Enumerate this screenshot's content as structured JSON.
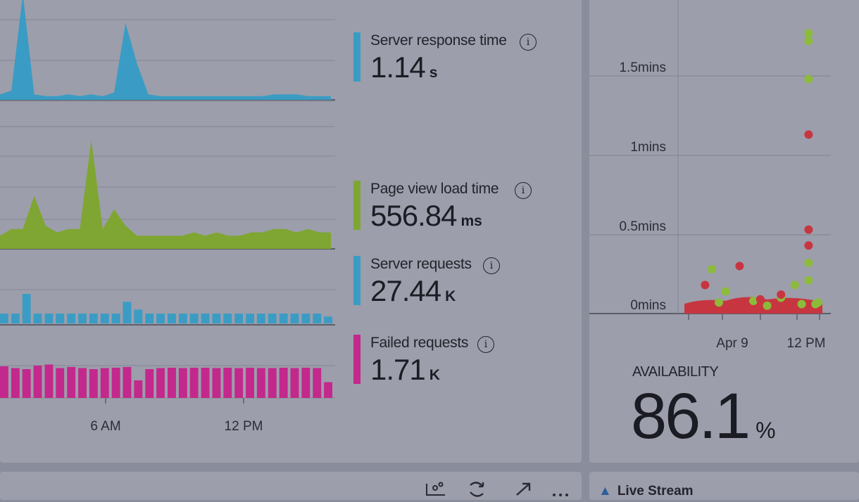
{
  "metrics": [
    {
      "label": "Server response time",
      "value": "1.14",
      "unit": "s",
      "color": "#3a9cc4"
    },
    {
      "label": "Page view load time",
      "value": "556.84",
      "unit": "ms",
      "color": "#7fa632"
    },
    {
      "label": "Server requests",
      "value": "27.44",
      "unit": "K",
      "color": "#3a9cc4"
    },
    {
      "label": "Failed requests",
      "value": "1.71",
      "unit": "K",
      "color": "#c3288c"
    }
  ],
  "info_icon": "i",
  "time_axis": {
    "labels": [
      "6 AM",
      "12 PM"
    ]
  },
  "scatter_axis": {
    "y_labels": [
      "1.5mins",
      "1mins",
      "0.5mins",
      "0mins"
    ],
    "x_labels": [
      "Apr 9",
      "12 PM"
    ]
  },
  "availability": {
    "label": "AVAILABILITY",
    "value": "86.1",
    "unit": "%"
  },
  "bottom": {
    "live_stream_label": "Live Stream",
    "icons": [
      "scatter-icon",
      "refresh-icon",
      "expand-icon",
      "more-icon"
    ]
  },
  "chart_data": [
    {
      "type": "area",
      "title": "Server response time",
      "color": "#3a9cc4",
      "x": [
        0,
        1,
        2,
        3,
        4,
        5,
        6,
        7,
        8,
        9,
        10,
        11,
        12,
        13,
        14,
        15,
        16,
        17,
        18,
        19,
        20,
        21,
        22,
        23,
        24,
        25,
        26,
        27,
        28,
        29
      ],
      "values": [
        0.3,
        0.5,
        5.8,
        0.3,
        0.2,
        0.2,
        0.3,
        0.2,
        0.3,
        0.2,
        0.4,
        4.2,
        2.0,
        0.3,
        0.2,
        0.2,
        0.2,
        0.2,
        0.2,
        0.2,
        0.2,
        0.2,
        0.2,
        0.2,
        0.3,
        0.3,
        0.3,
        0.2,
        0.2,
        0.2
      ]
    },
    {
      "type": "area",
      "title": "Page view load time",
      "color": "#7fa632",
      "x": [
        0,
        1,
        2,
        3,
        4,
        5,
        6,
        7,
        8,
        9,
        10,
        11,
        12,
        13,
        14,
        15,
        16,
        17,
        18,
        19,
        20,
        21,
        22,
        23,
        24,
        25,
        26,
        27,
        28,
        29
      ],
      "values": [
        0.4,
        0.6,
        0.6,
        1.6,
        0.7,
        0.5,
        0.6,
        0.6,
        3.3,
        0.6,
        1.2,
        0.7,
        0.4,
        0.4,
        0.4,
        0.4,
        0.4,
        0.5,
        0.4,
        0.5,
        0.4,
        0.4,
        0.5,
        0.5,
        0.6,
        0.6,
        0.5,
        0.6,
        0.5,
        0.5
      ]
    },
    {
      "type": "bar",
      "title": "Server requests",
      "color": "#3a9cc4",
      "values": [
        1,
        1,
        3,
        1,
        1,
        1,
        1,
        1,
        1,
        1,
        1,
        2.2,
        1.4,
        1,
        1,
        1,
        1,
        1,
        1,
        1,
        1,
        1,
        1,
        1,
        1,
        1,
        1,
        1,
        1,
        0.7
      ]
    },
    {
      "type": "bar",
      "title": "Failed requests",
      "color": "#c3288c",
      "values": [
        0.9,
        0.85,
        0.82,
        0.92,
        0.95,
        0.85,
        0.88,
        0.85,
        0.82,
        0.85,
        0.86,
        0.88,
        0.5,
        0.82,
        0.85,
        0.86,
        0.85,
        0.86,
        0.86,
        0.85,
        0.86,
        0.85,
        0.86,
        0.85,
        0.85,
        0.86,
        0.85,
        0.86,
        0.85,
        0.45
      ]
    },
    {
      "type": "scatter",
      "title": "",
      "ylabel": "",
      "ylim": [
        0,
        1.75
      ],
      "series": [
        {
          "color": "#8cba3a",
          "points": [
            [
              0.2,
              0.28
            ],
            [
              0.25,
              0.07
            ],
            [
              0.3,
              0.14
            ],
            [
              0.5,
              0.08
            ],
            [
              0.6,
              0.05
            ],
            [
              0.7,
              0.1
            ],
            [
              0.8,
              0.18
            ],
            [
              0.85,
              0.06
            ],
            [
              0.9,
              0.21
            ],
            [
              0.9,
              0.32
            ],
            [
              0.9,
              1.48
            ],
            [
              0.9,
              1.72
            ],
            [
              0.9,
              1.77
            ],
            [
              0.95,
              0.06
            ],
            [
              0.97,
              0.07
            ]
          ]
        },
        {
          "color": "#c73640",
          "points": [
            [
              0.15,
              0.18
            ],
            [
              0.4,
              0.3
            ],
            [
              0.55,
              0.09
            ],
            [
              0.7,
              0.12
            ],
            [
              0.9,
              0.43
            ],
            [
              0.9,
              0.53
            ],
            [
              0.9,
              1.13
            ]
          ]
        }
      ]
    }
  ]
}
